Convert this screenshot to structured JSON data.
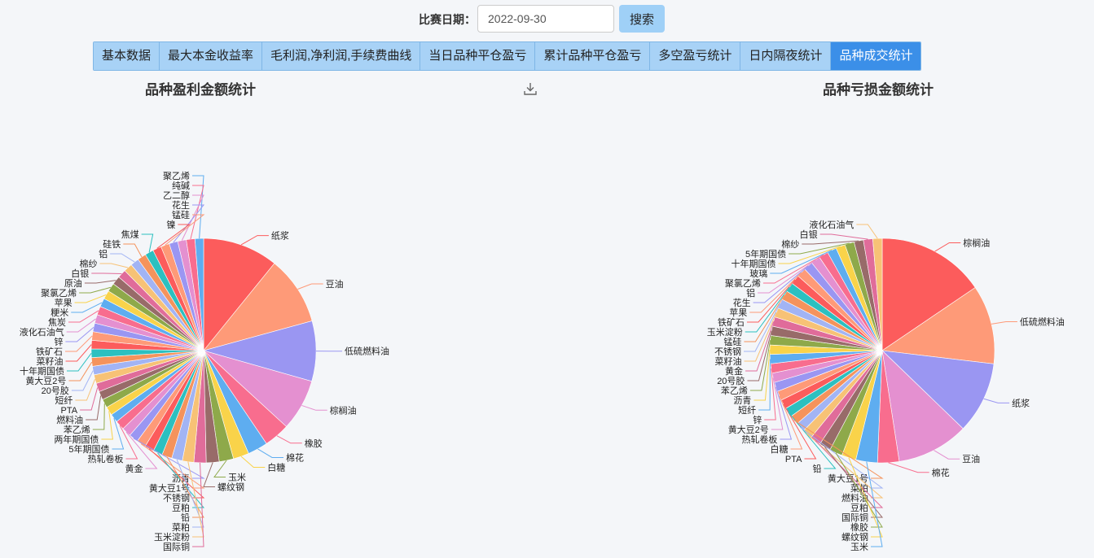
{
  "search": {
    "date_label": "比赛日期：",
    "date_value": "2022-09-30",
    "button_label": "搜索"
  },
  "tabs": [
    {
      "label": "基本数据",
      "active": false
    },
    {
      "label": "最大本金收益率",
      "active": false
    },
    {
      "label": "毛利润,净利润,手续费曲线",
      "active": false
    },
    {
      "label": "当日品种平仓盈亏",
      "active": false
    },
    {
      "label": "累计品种平仓盈亏",
      "active": false
    },
    {
      "label": "多空盈亏统计",
      "active": false
    },
    {
      "label": "日内隔夜统计",
      "active": false
    },
    {
      "label": "品种成交统计",
      "active": true
    }
  ],
  "icons": {
    "download": "download-icon"
  },
  "colors": {
    "tab_bg": "#a8d2f6",
    "tab_active": "#3b8fe8",
    "palette": [
      "#fc5c5c",
      "#fe9a78",
      "#9a96f2",
      "#e490d0",
      "#f86d8e",
      "#5eadf0",
      "#f9d34a",
      "#8ea94a",
      "#986b69",
      "#e06c9a",
      "#f7c276",
      "#a2b4f4",
      "#f5935c",
      "#2cc0c0"
    ]
  },
  "chart_data": [
    {
      "type": "pie",
      "title": "品种盈利金额统计",
      "slices": [
        {
          "name": "纸浆",
          "value": 10.5
        },
        {
          "name": "豆油",
          "value": 9.6
        },
        {
          "name": "低硫燃料油",
          "value": 8.4
        },
        {
          "name": "棕榈油",
          "value": 7.2
        },
        {
          "name": "橡胶",
          "value": 3.6
        },
        {
          "name": "棉花",
          "value": 2.8
        },
        {
          "name": "白糖",
          "value": 2.2
        },
        {
          "name": "玉米",
          "value": 2.0
        },
        {
          "name": "螺纹钢",
          "value": 1.8
        },
        {
          "name": "国际铜",
          "value": 1.7
        },
        {
          "name": "玉米淀粉",
          "value": 1.6
        },
        {
          "name": "菜粕",
          "value": 1.5
        },
        {
          "name": "铅",
          "value": 1.4
        },
        {
          "name": "豆粕",
          "value": 1.3
        },
        {
          "name": "不锈钢",
          "value": 1.3
        },
        {
          "name": "黄大豆1号",
          "value": 1.3
        },
        {
          "name": "沥青",
          "value": 1.3
        },
        {
          "name": "黄金",
          "value": 1.3
        },
        {
          "name": "热轧卷板",
          "value": 1.3
        },
        {
          "name": "5年期国债",
          "value": 1.2
        },
        {
          "name": "两年期国债",
          "value": 1.2
        },
        {
          "name": "苯乙烯",
          "value": 1.2
        },
        {
          "name": "燃料油",
          "value": 1.2
        },
        {
          "name": "PTA",
          "value": 1.2
        },
        {
          "name": "短纤",
          "value": 1.2
        },
        {
          "name": "20号胶",
          "value": 1.2
        },
        {
          "name": "黄大豆2号",
          "value": 1.2
        },
        {
          "name": "十年期国债",
          "value": 1.2
        },
        {
          "name": "菜籽油",
          "value": 1.2
        },
        {
          "name": "铁矿石",
          "value": 1.2
        },
        {
          "name": "锌",
          "value": 1.2
        },
        {
          "name": "液化石油气",
          "value": 1.2
        },
        {
          "name": "焦炭",
          "value": 1.2
        },
        {
          "name": "粳米",
          "value": 1.2
        },
        {
          "name": "苹果",
          "value": 1.2
        },
        {
          "name": "聚氯乙烯",
          "value": 1.2
        },
        {
          "name": "原油",
          "value": 1.2
        },
        {
          "name": "白银",
          "value": 1.2
        },
        {
          "name": "棉纱",
          "value": 1.2
        },
        {
          "name": "铝",
          "value": 1.2
        },
        {
          "name": "硅铁",
          "value": 1.2
        },
        {
          "name": "焦煤",
          "value": 1.2
        },
        {
          "name": "镍",
          "value": 1.2
        },
        {
          "name": "锰硅",
          "value": 1.2
        },
        {
          "name": "花生",
          "value": 1.2
        },
        {
          "name": "乙二醇",
          "value": 1.2
        },
        {
          "name": "纯碱",
          "value": 1.2
        },
        {
          "name": "聚乙烯",
          "value": 1.2
        }
      ]
    },
    {
      "type": "pie",
      "title": "品种亏损金额统计",
      "slices": [
        {
          "name": "棕榈油",
          "value": 15.0
        },
        {
          "name": "低硫燃料油",
          "value": 11.0
        },
        {
          "name": "纸浆",
          "value": 10.0
        },
        {
          "name": "豆油",
          "value": 10.0
        },
        {
          "name": "棉花",
          "value": 3.0
        },
        {
          "name": "玉米",
          "value": 3.0
        },
        {
          "name": "螺纹钢",
          "value": 2.0
        },
        {
          "name": "橡胶",
          "value": 1.8
        },
        {
          "name": "国际铜",
          "value": 1.6
        },
        {
          "name": "豆粕",
          "value": 1.5
        },
        {
          "name": "燃料油",
          "value": 1.4
        },
        {
          "name": "菜粕",
          "value": 1.3
        },
        {
          "name": "黄大豆1号",
          "value": 1.3
        },
        {
          "name": "铅",
          "value": 1.3
        },
        {
          "name": "PTA",
          "value": 1.3
        },
        {
          "name": "白糖",
          "value": 1.3
        },
        {
          "name": "热轧卷板",
          "value": 1.3
        },
        {
          "name": "黄大豆2号",
          "value": 1.3
        },
        {
          "name": "锌",
          "value": 1.3
        },
        {
          "name": "短纤",
          "value": 1.3
        },
        {
          "name": "沥青",
          "value": 1.3
        },
        {
          "name": "苯乙烯",
          "value": 1.3
        },
        {
          "name": "20号胶",
          "value": 1.3
        },
        {
          "name": "黄金",
          "value": 1.3
        },
        {
          "name": "菜籽油",
          "value": 1.3
        },
        {
          "name": "不锈钢",
          "value": 1.3
        },
        {
          "name": "锰硅",
          "value": 1.3
        },
        {
          "name": "玉米淀粉",
          "value": 1.3
        },
        {
          "name": "铁矿石",
          "value": 1.3
        },
        {
          "name": "苹果",
          "value": 1.3
        },
        {
          "name": "花生",
          "value": 1.3
        },
        {
          "name": "铝",
          "value": 1.3
        },
        {
          "name": "聚氯乙烯",
          "value": 1.3
        },
        {
          "name": "玻璃",
          "value": 1.3
        },
        {
          "name": "十年期国债",
          "value": 1.3
        },
        {
          "name": "5年期国债",
          "value": 1.3
        },
        {
          "name": "棉纱",
          "value": 1.3
        },
        {
          "name": "白银",
          "value": 1.3
        },
        {
          "name": "液化石油气",
          "value": 1.3
        }
      ]
    }
  ]
}
